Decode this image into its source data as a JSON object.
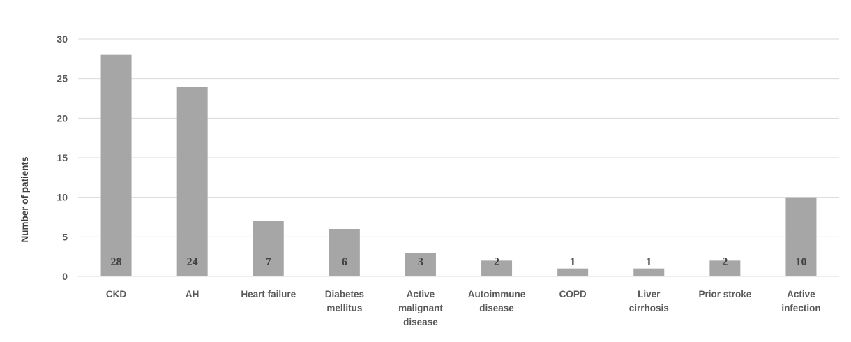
{
  "chart_data": {
    "type": "bar",
    "title": "",
    "xlabel": "",
    "ylabel": "Number of patients",
    "ylim": [
      0,
      30
    ],
    "yticks": [
      0,
      5,
      10,
      15,
      20,
      25,
      30
    ],
    "grid": true,
    "legend": "none",
    "bar_color": "#a6a6a6",
    "grid_color": "#d9d9d9",
    "categories": [
      [
        "CKD"
      ],
      [
        "AH"
      ],
      [
        "Heart failure"
      ],
      [
        "Diabetes",
        "mellitus"
      ],
      [
        "Active",
        "malignant",
        "disease"
      ],
      [
        "Autoimmune",
        "disease"
      ],
      [
        "COPD"
      ],
      [
        "Liver",
        "cirrhosis"
      ],
      [
        "Prior stroke"
      ],
      [
        "Active",
        "infection"
      ]
    ],
    "values": [
      28,
      24,
      7,
      6,
      3,
      2,
      1,
      1,
      2,
      10
    ]
  }
}
